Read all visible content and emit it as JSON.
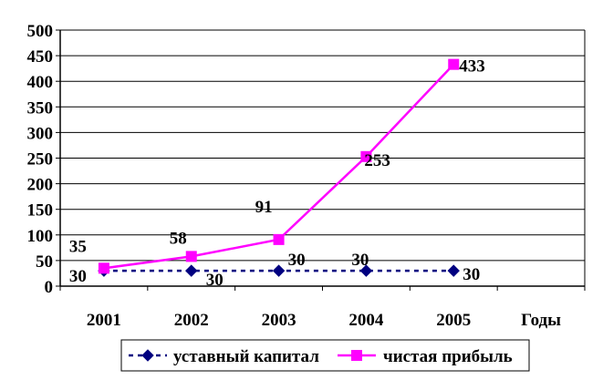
{
  "chart_data": {
    "type": "line",
    "categories": [
      "2001",
      "2002",
      "2003",
      "2004",
      "2005"
    ],
    "extra_category_label": "Годы",
    "ylim": [
      0,
      500
    ],
    "yticks": [
      0,
      50,
      100,
      150,
      200,
      250,
      300,
      350,
      400,
      450,
      500
    ],
    "grid": true,
    "legend_position": "bottom",
    "series": [
      {
        "name": "уставный капитал",
        "values": [
          30,
          30,
          30,
          30,
          30
        ],
        "color": "#000080",
        "line_style": "dashed",
        "marker": "diamond"
      },
      {
        "name": "чистая прибыль",
        "values": [
          35,
          58,
          91,
          253,
          433
        ],
        "color": "#ff00ff",
        "line_style": "solid",
        "marker": "square"
      }
    ]
  }
}
